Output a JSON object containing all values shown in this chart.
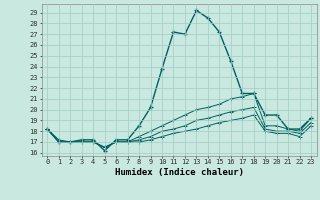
{
  "xlabel": "Humidex (Indice chaleur)",
  "bg_color": "#c8e8e0",
  "grid_color": "#a0ccc4",
  "line_color": "#006060",
  "xlim": [
    -0.5,
    23.5
  ],
  "ylim": [
    15.7,
    29.8
  ],
  "yticks": [
    16,
    17,
    18,
    19,
    20,
    21,
    22,
    23,
    24,
    25,
    26,
    27,
    28,
    29
  ],
  "xticks": [
    0,
    1,
    2,
    3,
    4,
    5,
    6,
    7,
    8,
    9,
    10,
    11,
    12,
    13,
    14,
    15,
    16,
    17,
    18,
    19,
    20,
    21,
    22,
    23
  ],
  "series1": [
    18.2,
    17.0,
    17.0,
    17.2,
    17.2,
    16.2,
    17.2,
    17.2,
    18.5,
    20.2,
    23.8,
    27.2,
    27.0,
    29.2,
    28.5,
    27.2,
    24.5,
    21.5,
    21.5,
    19.5,
    19.5,
    18.2,
    18.2,
    19.2
  ],
  "series2": [
    18.2,
    17.2,
    17.0,
    17.0,
    17.0,
    16.5,
    17.0,
    17.0,
    17.5,
    18.0,
    18.5,
    19.0,
    19.5,
    20.0,
    20.2,
    20.5,
    21.0,
    21.2,
    21.5,
    18.5,
    18.5,
    18.2,
    18.0,
    19.2
  ],
  "series3": [
    18.2,
    17.0,
    17.0,
    17.0,
    17.0,
    16.5,
    17.0,
    17.0,
    17.2,
    17.5,
    18.0,
    18.2,
    18.5,
    19.0,
    19.2,
    19.5,
    19.8,
    20.0,
    20.2,
    18.2,
    18.0,
    18.0,
    17.8,
    18.8
  ],
  "series4": [
    18.2,
    17.0,
    17.0,
    17.0,
    17.0,
    16.5,
    17.0,
    17.0,
    17.0,
    17.2,
    17.5,
    17.8,
    18.0,
    18.2,
    18.5,
    18.8,
    19.0,
    19.2,
    19.5,
    18.0,
    17.8,
    17.8,
    17.5,
    18.5
  ],
  "tick_fontsize": 5.0,
  "xlabel_fontsize": 6.5
}
